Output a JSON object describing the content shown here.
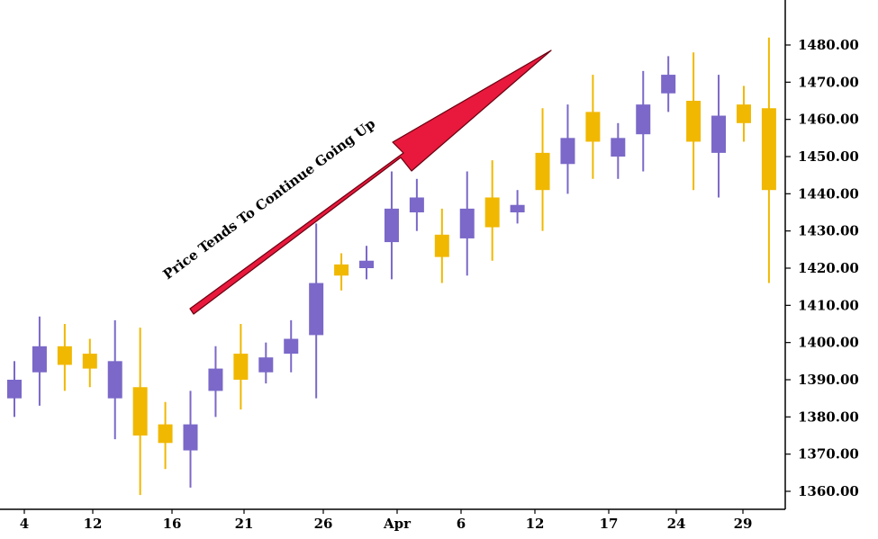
{
  "chart_data": {
    "type": "candlestick",
    "title": "",
    "xlabel": "",
    "ylabel": "",
    "ylim": [
      1355,
      1488
    ],
    "y_ticks": [
      "1480.00",
      "1470.00",
      "1460.00",
      "1450.00",
      "1440.00",
      "1430.00",
      "1420.00",
      "1410.00",
      "1400.00",
      "1390.00",
      "1380.00",
      "1370.00",
      "1360.00"
    ],
    "x_tick_labels": [
      "4",
      "12",
      "16",
      "21",
      "26",
      "Apr",
      "6",
      "12",
      "17",
      "24",
      "29"
    ],
    "annotation": {
      "text": "Price Tends To Continue Going Up"
    },
    "colors": {
      "up": "#7b68c8",
      "down": "#f0b800",
      "arrow": "#e8193c",
      "axis": "#000000"
    },
    "candles": [
      {
        "open": 1385,
        "high": 1395,
        "low": 1380,
        "close": 1390
      },
      {
        "open": 1392,
        "high": 1407,
        "low": 1383,
        "close": 1399
      },
      {
        "open": 1399,
        "high": 1405,
        "low": 1387,
        "close": 1394
      },
      {
        "open": 1397,
        "high": 1401,
        "low": 1388,
        "close": 1393
      },
      {
        "open": 1385,
        "high": 1406,
        "low": 1374,
        "close": 1395
      },
      {
        "open": 1388,
        "high": 1404,
        "low": 1359,
        "close": 1375
      },
      {
        "open": 1378,
        "high": 1384,
        "low": 1366,
        "close": 1373
      },
      {
        "open": 1371,
        "high": 1387,
        "low": 1361,
        "close": 1378
      },
      {
        "open": 1387,
        "high": 1399,
        "low": 1380,
        "close": 1393
      },
      {
        "open": 1397,
        "high": 1405,
        "low": 1382,
        "close": 1390
      },
      {
        "open": 1392,
        "high": 1400,
        "low": 1389,
        "close": 1396
      },
      {
        "open": 1397,
        "high": 1406,
        "low": 1392,
        "close": 1401
      },
      {
        "open": 1402,
        "high": 1432,
        "low": 1385,
        "close": 1416
      },
      {
        "open": 1421,
        "high": 1424,
        "low": 1414,
        "close": 1418
      },
      {
        "open": 1420,
        "high": 1426,
        "low": 1417,
        "close": 1422
      },
      {
        "open": 1427,
        "high": 1446,
        "low": 1417,
        "close": 1436
      },
      {
        "open": 1435,
        "high": 1444,
        "low": 1430,
        "close": 1439
      },
      {
        "open": 1429,
        "high": 1436,
        "low": 1416,
        "close": 1423
      },
      {
        "open": 1428,
        "high": 1446,
        "low": 1418,
        "close": 1436
      },
      {
        "open": 1439,
        "high": 1449,
        "low": 1422,
        "close": 1431
      },
      {
        "open": 1435,
        "high": 1441,
        "low": 1432,
        "close": 1437
      },
      {
        "open": 1451,
        "high": 1463,
        "low": 1430,
        "close": 1441
      },
      {
        "open": 1448,
        "high": 1464,
        "low": 1440,
        "close": 1455
      },
      {
        "open": 1462,
        "high": 1472,
        "low": 1444,
        "close": 1454
      },
      {
        "open": 1450,
        "high": 1459,
        "low": 1444,
        "close": 1455
      },
      {
        "open": 1456,
        "high": 1473,
        "low": 1446,
        "close": 1464
      },
      {
        "open": 1467,
        "high": 1477,
        "low": 1462,
        "close": 1472
      },
      {
        "open": 1465,
        "high": 1478,
        "low": 1441,
        "close": 1454
      },
      {
        "open": 1451,
        "high": 1472,
        "low": 1439,
        "close": 1461
      },
      {
        "open": 1464,
        "high": 1469,
        "low": 1454,
        "close": 1459
      },
      {
        "open": 1463,
        "high": 1482,
        "low": 1416,
        "close": 1441
      }
    ]
  }
}
